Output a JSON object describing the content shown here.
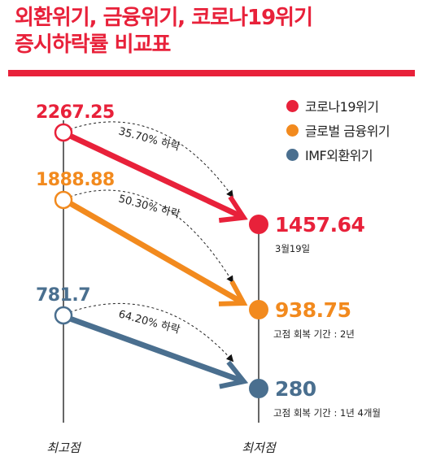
{
  "title": {
    "line1": "외환위기, 금융위기, 코로나19위기",
    "line2": "증시하락률 비교표"
  },
  "colors": {
    "covid": "#e8213a",
    "financial": "#f28a1e",
    "imf": "#4a6f8f",
    "axis": "#333333",
    "title": "#e8213a"
  },
  "legend": [
    {
      "label": "코로나19위기",
      "color": "#e8213a"
    },
    {
      "label": "글로벌 금융위기",
      "color": "#f28a1e"
    },
    {
      "label": "IMF외환위기",
      "color": "#4a6f8f"
    }
  ],
  "chart_data": {
    "type": "line",
    "categories": [
      "최고점",
      "최저점"
    ],
    "series": [
      {
        "name": "코로나19위기",
        "color": "#e8213a",
        "values": [
          2267.25,
          1457.64
        ],
        "peak_label": "2267.25",
        "trough_label": "1457.64",
        "decline_label": "35.70% 하락",
        "note": "3월19일"
      },
      {
        "name": "글로벌 금융위기",
        "color": "#f28a1e",
        "values": [
          1888.88,
          938.75
        ],
        "peak_label": "1888.88",
        "trough_label": "938.75",
        "decline_label": "50.30% 하락",
        "note": "고점 회복 기간 : 2년"
      },
      {
        "name": "IMF외환위기",
        "color": "#4a6f8f",
        "values": [
          781.7,
          280
        ],
        "peak_label": "781.7",
        "trough_label": "280",
        "decline_label": "64.20% 하락",
        "note": "고점 회복 기간 : 1년 4개월"
      }
    ]
  }
}
